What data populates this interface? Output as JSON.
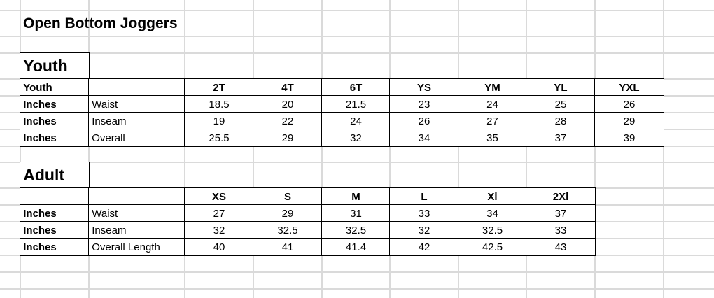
{
  "title": "Open Bottom Joggers",
  "youth": {
    "section_label": "Youth",
    "header": {
      "col_a": "Youth",
      "col_b": "",
      "sizes": [
        "2T",
        "4T",
        "6T",
        "YS",
        "YM",
        "YL",
        "YXL"
      ]
    },
    "rows": [
      {
        "unit": "Inches",
        "measure": "Waist",
        "values": [
          "18.5",
          "20",
          "21.5",
          "23",
          "24",
          "25",
          "26"
        ]
      },
      {
        "unit": "Inches",
        "measure": "Inseam",
        "values": [
          "19",
          "22",
          "24",
          "26",
          "27",
          "28",
          "29"
        ]
      },
      {
        "unit": "Inches",
        "measure": "Overall",
        "values": [
          "25.5",
          "29",
          "32",
          "34",
          "35",
          "37",
          "39"
        ]
      }
    ]
  },
  "adult": {
    "section_label": "Adult",
    "header": {
      "col_a": "",
      "col_b": "",
      "sizes": [
        "XS",
        "S",
        "M",
        "L",
        "Xl",
        "2Xl"
      ]
    },
    "rows": [
      {
        "unit": "Inches",
        "measure": "Waist",
        "values": [
          "27",
          "29",
          "31",
          "33",
          "34",
          "37"
        ]
      },
      {
        "unit": "Inches",
        "measure": "Inseam",
        "values": [
          "32",
          "32.5",
          "32.5",
          "32",
          "32.5",
          "33"
        ]
      },
      {
        "unit": "Inches",
        "measure": "Overall Length",
        "values": [
          "40",
          "41",
          "41.4",
          "42",
          "42.5",
          "43"
        ]
      }
    ]
  }
}
